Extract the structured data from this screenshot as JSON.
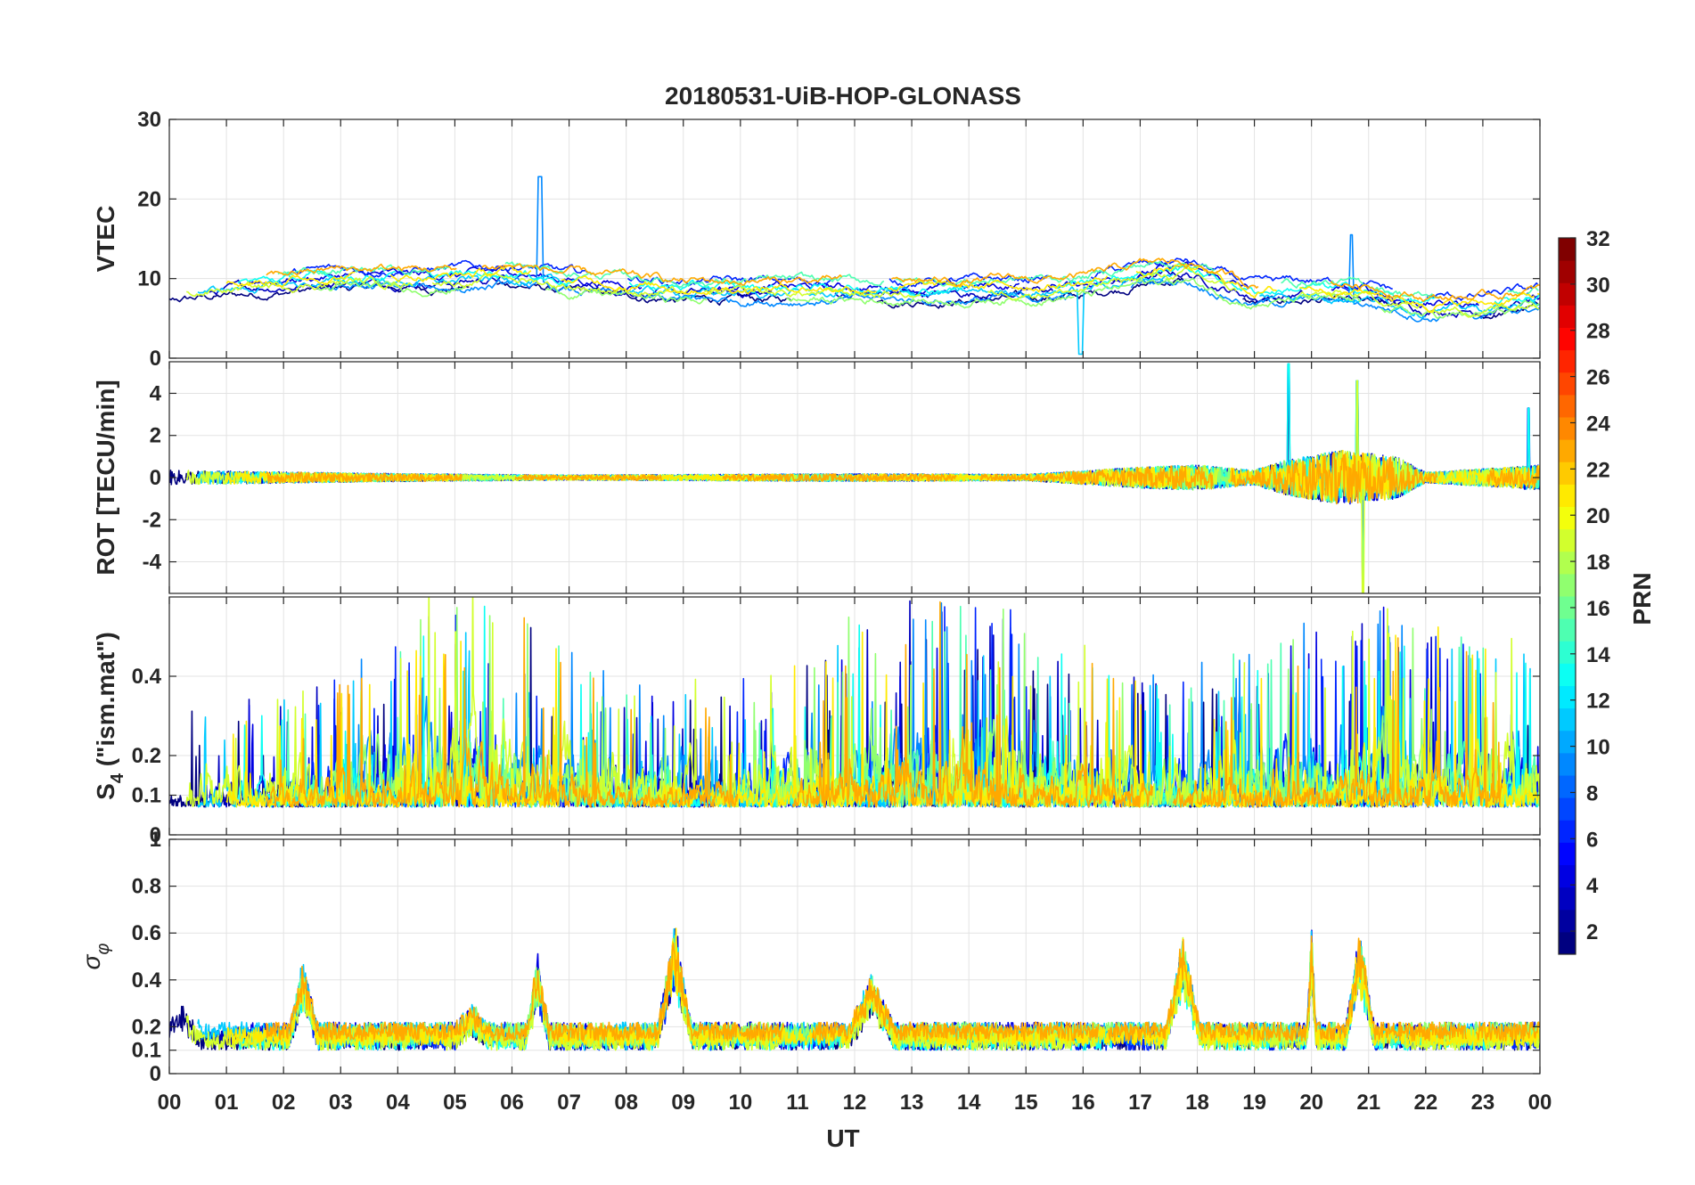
{
  "chart_data": {
    "type": "line",
    "title": "20180531-UiB-HOP-GLONASS",
    "xlabel": "UT",
    "x_range_hours": [
      0,
      24
    ],
    "x_tick_labels": [
      "00",
      "01",
      "02",
      "03",
      "04",
      "05",
      "06",
      "07",
      "08",
      "09",
      "10",
      "11",
      "12",
      "13",
      "14",
      "15",
      "16",
      "17",
      "18",
      "19",
      "20",
      "21",
      "22",
      "23",
      "00"
    ],
    "colorbar": {
      "label": "PRN",
      "range": [
        1,
        32
      ],
      "tick_labels": [
        "2",
        "4",
        "6",
        "8",
        "10",
        "12",
        "14",
        "16",
        "18",
        "20",
        "22",
        "24",
        "26",
        "28",
        "30",
        "32"
      ],
      "colormap": "jet"
    },
    "panels": [
      {
        "id": "vtec",
        "ylabel": "VTEC",
        "ylim": [
          0,
          30
        ],
        "y_ticks": [
          {
            "v": 0,
            "t": "0"
          },
          {
            "v": 10,
            "t": "10"
          },
          {
            "v": 20,
            "t": "20"
          },
          {
            "v": 30,
            "t": "30"
          }
        ],
        "baseline": [
          [
            0,
            8.5
          ],
          [
            2,
            9.5
          ],
          [
            3,
            10
          ],
          [
            5,
            10
          ],
          [
            6,
            10.5
          ],
          [
            7,
            9.5
          ],
          [
            9,
            8.5
          ],
          [
            12,
            8.5
          ],
          [
            14,
            8.5
          ],
          [
            16,
            9
          ],
          [
            17,
            10.5
          ],
          [
            17.8,
            11
          ],
          [
            19,
            8
          ],
          [
            20,
            8.5
          ],
          [
            21,
            8
          ],
          [
            22,
            6.5
          ],
          [
            23,
            6.5
          ],
          [
            24,
            7.5
          ]
        ],
        "noise": 0.6,
        "events": [
          {
            "t": 6.5,
            "peak": 22.8,
            "label": "spike"
          },
          {
            "t": 15.95,
            "peak": 0.5,
            "label": "dropout"
          },
          {
            "t": 20.7,
            "peak": 15.5,
            "label": "spike"
          }
        ]
      },
      {
        "id": "rot",
        "ylabel": "ROT [TECU/min]",
        "ylim": [
          -5.5,
          5.5
        ],
        "y_ticks": [
          {
            "v": -4,
            "t": "-4"
          },
          {
            "v": -2,
            "t": "-2"
          },
          {
            "v": 0,
            "t": "0"
          },
          {
            "v": 2,
            "t": "2"
          },
          {
            "v": 4,
            "t": "4"
          }
        ],
        "baseline": [
          [
            0,
            0
          ],
          [
            24,
            0
          ]
        ],
        "noise_profile": [
          [
            0,
            0.35
          ],
          [
            3.5,
            0.2
          ],
          [
            7,
            0.12
          ],
          [
            12,
            0.18
          ],
          [
            15,
            0.15
          ],
          [
            17,
            0.5
          ],
          [
            18,
            0.6
          ],
          [
            19,
            0.35
          ],
          [
            19.5,
            0.8
          ],
          [
            20.5,
            1.3
          ],
          [
            21.5,
            1.0
          ],
          [
            22,
            0.25
          ],
          [
            23.5,
            0.5
          ],
          [
            24,
            0.6
          ]
        ],
        "extremes": [
          {
            "t": 19.6,
            "v": 5.4
          },
          {
            "t": 20.8,
            "v": 4.6
          },
          {
            "t": 20.9,
            "v": -5.5
          },
          {
            "t": 23.8,
            "v": 3.3
          }
        ]
      },
      {
        "id": "s4",
        "ylabel": "S_4 (\"ism.mat\")",
        "ylabel_main": "S",
        "ylabel_sub": "4",
        "ylabel_rest": " (\"ism.mat\")",
        "ylim": [
          0,
          0.6
        ],
        "y_ticks": [
          {
            "v": 0,
            "t": "0"
          },
          {
            "v": 0.1,
            "t": "0.1"
          },
          {
            "v": 0.2,
            "t": "0.2"
          },
          {
            "v": 0.4,
            "t": "0.4"
          }
        ],
        "baseline": [
          [
            0,
            0.07
          ],
          [
            24,
            0.07
          ]
        ],
        "activity": [
          [
            0,
            0.2
          ],
          [
            2,
            0.18
          ],
          [
            4,
            0.25
          ],
          [
            5,
            0.35
          ],
          [
            6.5,
            0.3
          ],
          [
            8,
            0.18
          ],
          [
            10,
            0.2
          ],
          [
            12,
            0.3
          ],
          [
            14,
            0.35
          ],
          [
            16,
            0.25
          ],
          [
            18,
            0.2
          ],
          [
            20,
            0.3
          ],
          [
            22,
            0.3
          ],
          [
            24,
            0.25
          ]
        ]
      },
      {
        "id": "sigma_phi",
        "ylabel": "σ_φ",
        "ylabel_main": "σ",
        "ylabel_sub": "φ",
        "ylim": [
          0,
          1.0
        ],
        "y_ticks": [
          {
            "v": 0,
            "t": "0"
          },
          {
            "v": 0.1,
            "t": "0.1"
          },
          {
            "v": 0.2,
            "t": "0.2"
          },
          {
            "v": 0.4,
            "t": "0.4"
          },
          {
            "v": 0.6,
            "t": "0.6"
          },
          {
            "v": 0.8,
            "t": "0.8"
          },
          {
            "v": 1.0,
            "t": "1"
          }
        ],
        "baseline": [
          [
            0,
            0.16
          ],
          [
            24,
            0.16
          ]
        ],
        "bursts": [
          {
            "t": 0.2,
            "w": 0.35,
            "h": 0.3
          },
          {
            "t": 2.35,
            "w": 0.25,
            "h": 0.45
          },
          {
            "t": 5.3,
            "w": 0.3,
            "h": 0.25
          },
          {
            "t": 6.45,
            "w": 0.2,
            "h": 0.48
          },
          {
            "t": 8.85,
            "w": 0.3,
            "h": 0.62
          },
          {
            "t": 12.3,
            "w": 0.4,
            "h": 0.4
          },
          {
            "t": 17.75,
            "w": 0.3,
            "h": 0.57
          },
          {
            "t": 20,
            "w": 0.08,
            "h": 0.62
          },
          {
            "t": 20.85,
            "w": 0.25,
            "h": 0.6
          }
        ]
      }
    ],
    "series_prns": [
      1,
      3,
      4,
      6,
      9,
      11,
      13,
      15,
      17,
      19,
      21,
      23
    ]
  }
}
